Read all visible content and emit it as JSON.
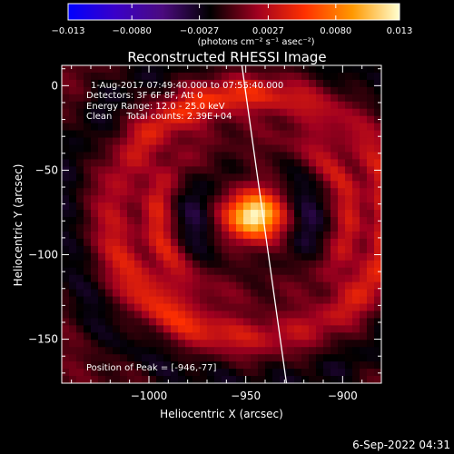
{
  "chart_data": {
    "type": "heatmap",
    "title": "Reconstructed RHESSI Image",
    "xlabel": "Heliocentric X (arcsec)",
    "ylabel": "Heliocentric Y (arcsec)",
    "xlim": [
      -1045,
      -880
    ],
    "ylim": [
      -176,
      12
    ],
    "x_ticks": [
      {
        "value": -1000,
        "label": "−1000"
      },
      {
        "value": -950,
        "label": "−950"
      },
      {
        "value": -900,
        "label": "−900"
      }
    ],
    "y_ticks": [
      {
        "value": 0,
        "label": "0"
      },
      {
        "value": -50,
        "label": "−50"
      },
      {
        "value": -100,
        "label": "−100"
      },
      {
        "value": -150,
        "label": "−150"
      }
    ],
    "colorbar": {
      "range": [
        -0.013,
        0.013
      ],
      "ticks": [
        {
          "value": -0.013,
          "label": "−0.013"
        },
        {
          "value": -0.008,
          "label": "−0.0080"
        },
        {
          "value": -0.0027,
          "label": "−0.0027"
        },
        {
          "value": 0.0027,
          "label": "0.0027"
        },
        {
          "value": 0.008,
          "label": "0.0080"
        },
        {
          "value": 0.013,
          "label": "0.013"
        }
      ],
      "unit_label": "(photons cm⁻² s⁻¹ asec⁻²)",
      "colors": [
        "#0000ff",
        "#3a00c8",
        "#4b0b7e",
        "#000000",
        "#a00020",
        "#ff3000",
        "#ff9800",
        "#ffffd0"
      ]
    },
    "annotations": [
      "1-Aug-2017 07:49:40.000 to 07:55:40.000",
      "Detectors: 3F 6F 8F, Att 0",
      "Energy Range: 12.0 - 25.0 keV",
      "Clean     Total counts: 2.39E+04"
    ],
    "peak_label": "Position of Peak = [-946,-77]",
    "peak": {
      "x": -946,
      "y": -77
    },
    "limb_line": [
      [
        -952,
        12
      ],
      [
        -929,
        -176
      ]
    ],
    "grid": false
  },
  "footer": {
    "date": "6-Sep-2022 04:31"
  }
}
